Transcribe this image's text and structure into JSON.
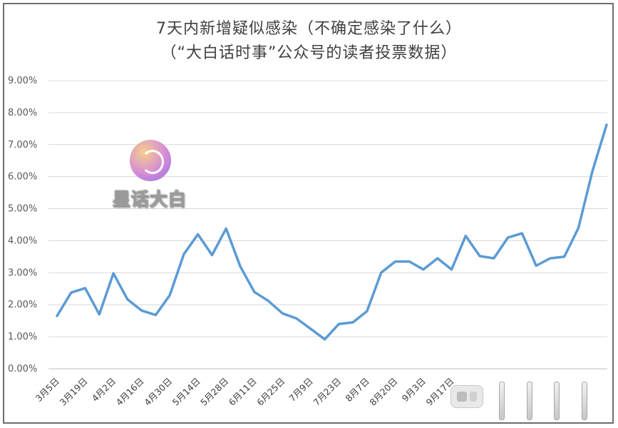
{
  "chart_data": {
    "type": "line",
    "title": "7天内新增疑似感染（不确定感染了什么）",
    "subtitle": "（“大白话时事”公众号的读者投票数据）",
    "xlabel": "",
    "ylabel": "",
    "ylim": [
      0,
      9
    ],
    "y_ticks": [
      "0.00%",
      "1.00%",
      "2.00%",
      "3.00%",
      "4.00%",
      "5.00%",
      "6.00%",
      "7.00%",
      "8.00%",
      "9.00%"
    ],
    "grid": true,
    "legend": "none",
    "line_color": "#5b9bd5",
    "x_tick_labels": [
      "3月5日",
      "3月19日",
      "4月2日",
      "4月16日",
      "4月30日",
      "5月14日",
      "5月28日",
      "6月11日",
      "6月25日",
      "7月9日",
      "7月23日",
      "8月7日",
      "8月20日",
      "9月3日",
      "9月17日"
    ],
    "series": [
      {
        "values": [
          1.65,
          2.38,
          2.52,
          1.7,
          2.98,
          2.17,
          1.82,
          1.68,
          2.3,
          3.58,
          4.2,
          3.55,
          4.38,
          3.2,
          2.4,
          2.12,
          1.73,
          1.57,
          1.25,
          0.92,
          1.4,
          1.45,
          1.8,
          3.0,
          3.35,
          3.35,
          3.1,
          3.45,
          3.1,
          4.15,
          3.52,
          3.45,
          4.1,
          4.23,
          3.22,
          3.45,
          3.5,
          4.4,
          6.18,
          7.62
        ]
      }
    ]
  },
  "watermark": {
    "text": "星话大白"
  }
}
